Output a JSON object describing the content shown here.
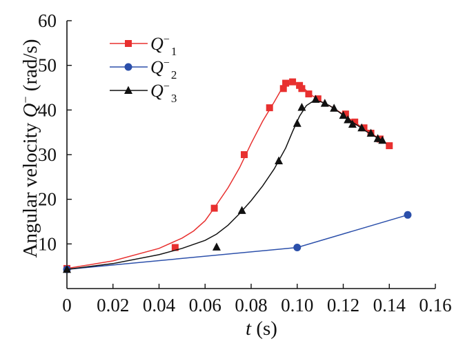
{
  "chart_data": {
    "type": "line",
    "title": "",
    "xlabel": {
      "var": "t",
      "unit": " (s)"
    },
    "ylabel": {
      "prefix": "Angular velocity ",
      "var": "Q",
      "sup": "−",
      "unit": " (rad/s)"
    },
    "xlim": [
      0,
      0.16
    ],
    "ylim": [
      0,
      60
    ],
    "xticks": [
      0,
      0.02,
      0.04,
      0.06,
      0.08,
      0.1,
      0.12,
      0.14,
      0.16
    ],
    "xtick_labels": [
      "0",
      "0.02",
      "0.04",
      "0.06",
      "0.08",
      "0.10",
      "0.12",
      "0.14",
      "0.16"
    ],
    "yticks": [
      10,
      20,
      30,
      40,
      50,
      60
    ],
    "ytick_labels": [
      "10",
      "20",
      "30",
      "40",
      "50",
      "60"
    ],
    "grid": false,
    "legend_position": "top-left",
    "series": [
      {
        "name": "Q⁻1",
        "label": {
          "var": "Q",
          "sup": "−",
          "sub": "1"
        },
        "color": "#e8302f",
        "marker": "square",
        "curve": [
          [
            0,
            4.5
          ],
          [
            0.02,
            6.2
          ],
          [
            0.04,
            9.0
          ],
          [
            0.05,
            11.3
          ],
          [
            0.055,
            12.9
          ],
          [
            0.06,
            15.2
          ],
          [
            0.065,
            18.8
          ],
          [
            0.07,
            22.6
          ],
          [
            0.075,
            27.1
          ],
          [
            0.08,
            32.5
          ],
          [
            0.085,
            37.5
          ],
          [
            0.09,
            41.8
          ],
          [
            0.093,
            44.5
          ],
          [
            0.095,
            45.6
          ],
          [
            0.098,
            46.2
          ],
          [
            0.1,
            45.9
          ],
          [
            0.103,
            44.8
          ],
          [
            0.106,
            43.4
          ],
          [
            0.11,
            42.0
          ],
          [
            0.115,
            40.7
          ],
          [
            0.12,
            39.0
          ],
          [
            0.125,
            37.2
          ],
          [
            0.13,
            35.5
          ],
          [
            0.135,
            33.8
          ],
          [
            0.14,
            32.0
          ]
        ],
        "points": [
          [
            0,
            4.5
          ],
          [
            0.047,
            9.2
          ],
          [
            0.064,
            18.0
          ],
          [
            0.077,
            30.0
          ],
          [
            0.088,
            40.5
          ],
          [
            0.094,
            44.8
          ],
          [
            0.095,
            46.0
          ],
          [
            0.098,
            46.3
          ],
          [
            0.101,
            45.5
          ],
          [
            0.102,
            44.8
          ],
          [
            0.105,
            43.6
          ],
          [
            0.109,
            42.5
          ],
          [
            0.121,
            39.1
          ],
          [
            0.125,
            37.3
          ],
          [
            0.129,
            36.0
          ],
          [
            0.132,
            34.8
          ],
          [
            0.136,
            33.5
          ],
          [
            0.14,
            32.0
          ]
        ]
      },
      {
        "name": "Q⁻2",
        "label": {
          "var": "Q",
          "sup": "−",
          "sub": "2"
        },
        "color": "#2b4faa",
        "marker": "circle",
        "curve": [
          [
            0,
            4.3
          ],
          [
            0.1,
            9.2
          ],
          [
            0.148,
            16.5
          ]
        ],
        "points": [
          [
            0,
            4.3
          ],
          [
            0.1,
            9.2
          ],
          [
            0.148,
            16.5
          ]
        ]
      },
      {
        "name": "Q⁻3",
        "label": {
          "var": "Q",
          "sup": "−",
          "sub": "3"
        },
        "color": "#111111",
        "marker": "triangle",
        "curve": [
          [
            0,
            4.3
          ],
          [
            0.02,
            5.6
          ],
          [
            0.04,
            7.6
          ],
          [
            0.05,
            9.0
          ],
          [
            0.06,
            10.8
          ],
          [
            0.065,
            12.2
          ],
          [
            0.07,
            14.2
          ],
          [
            0.075,
            16.8
          ],
          [
            0.08,
            19.7
          ],
          [
            0.085,
            23.0
          ],
          [
            0.09,
            26.8
          ],
          [
            0.095,
            31.5
          ],
          [
            0.098,
            35.2
          ],
          [
            0.101,
            38.6
          ],
          [
            0.104,
            41.0
          ],
          [
            0.107,
            42.0
          ],
          [
            0.11,
            41.9
          ],
          [
            0.114,
            41.0
          ],
          [
            0.118,
            39.6
          ],
          [
            0.122,
            38.0
          ],
          [
            0.126,
            36.6
          ],
          [
            0.13,
            35.2
          ],
          [
            0.134,
            34.0
          ],
          [
            0.137,
            33.2
          ]
        ],
        "points": [
          [
            0,
            4.3
          ],
          [
            0.065,
            9.3
          ],
          [
            0.076,
            17.5
          ],
          [
            0.092,
            28.6
          ],
          [
            0.1,
            37.0
          ],
          [
            0.102,
            40.6
          ],
          [
            0.108,
            42.4
          ],
          [
            0.112,
            41.5
          ],
          [
            0.116,
            40.4
          ],
          [
            0.12,
            38.8
          ],
          [
            0.122,
            37.8
          ],
          [
            0.124,
            36.8
          ],
          [
            0.128,
            36.0
          ],
          [
            0.132,
            34.8
          ],
          [
            0.135,
            33.6
          ],
          [
            0.137,
            33.2
          ]
        ]
      }
    ]
  }
}
